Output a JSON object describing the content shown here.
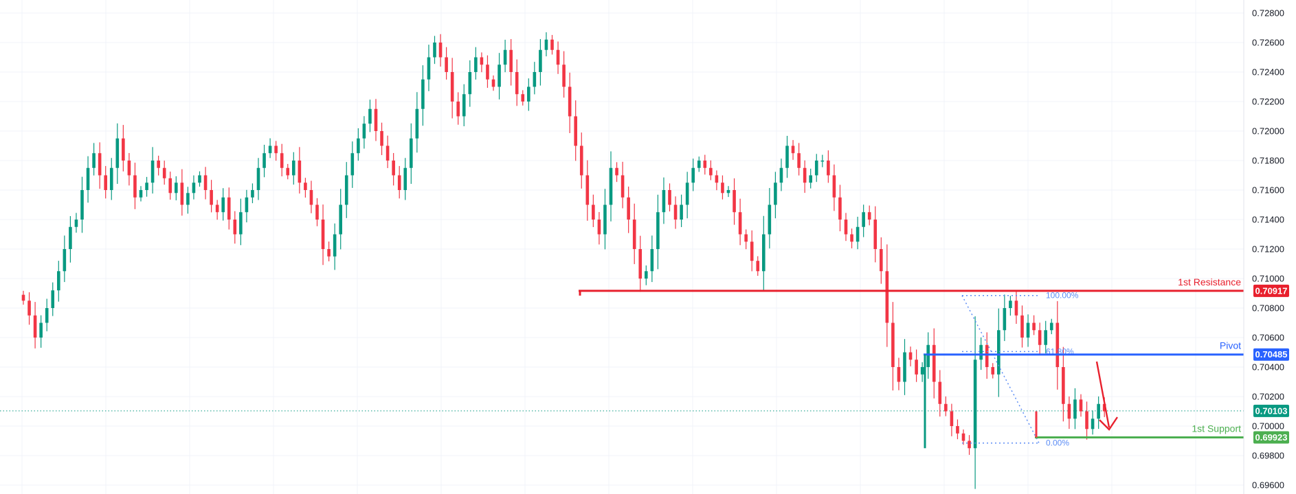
{
  "colors": {
    "background": "#ffffff",
    "grid": "#f0f3fa",
    "up_candle": "#089981",
    "down_candle": "#f23645",
    "resistance": "#e8202d",
    "pivot": "#2962ff",
    "support": "#4caf50",
    "current_price": "#089981",
    "fib": "#5b8cf5",
    "arrow": "#e8202d"
  },
  "chart_data": {
    "type": "candlestick",
    "grid": true,
    "ylim": [
      0.696,
      0.728
    ],
    "y_ticks": [
      "0.72800",
      "0.72600",
      "0.72400",
      "0.72200",
      "0.72000",
      "0.71800",
      "0.71600",
      "0.71400",
      "0.71200",
      "0.71000",
      "0.70800",
      "0.70600",
      "0.70400",
      "0.70200",
      "0.70000",
      "0.69800",
      "0.69600"
    ],
    "closes": [
      0.7085,
      0.7075,
      0.706,
      0.707,
      0.708,
      0.7092,
      0.7105,
      0.712,
      0.7135,
      0.714,
      0.716,
      0.7175,
      0.7185,
      0.717,
      0.716,
      0.7175,
      0.7195,
      0.718,
      0.717,
      0.7155,
      0.716,
      0.7165,
      0.718,
      0.7175,
      0.7168,
      0.7158,
      0.7165,
      0.715,
      0.7158,
      0.7165,
      0.717,
      0.716,
      0.715,
      0.7145,
      0.7155,
      0.714,
      0.713,
      0.7145,
      0.7155,
      0.716,
      0.7175,
      0.7185,
      0.719,
      0.7185,
      0.7175,
      0.717,
      0.718,
      0.7165,
      0.716,
      0.715,
      0.714,
      0.712,
      0.7115,
      0.713,
      0.715,
      0.717,
      0.7185,
      0.7195,
      0.7205,
      0.7215,
      0.72,
      0.719,
      0.718,
      0.717,
      0.716,
      0.7175,
      0.7195,
      0.7215,
      0.7235,
      0.725,
      0.726,
      0.725,
      0.724,
      0.722,
      0.721,
      0.7225,
      0.724,
      0.725,
      0.7245,
      0.7235,
      0.723,
      0.7245,
      0.7255,
      0.724,
      0.7225,
      0.722,
      0.723,
      0.724,
      0.7255,
      0.7262,
      0.7255,
      0.7245,
      0.723,
      0.721,
      0.719,
      0.717,
      0.715,
      0.714,
      0.713,
      0.715,
      0.7175,
      0.717,
      0.7155,
      0.714,
      0.712,
      0.71,
      0.7105,
      0.712,
      0.7145,
      0.716,
      0.715,
      0.714,
      0.715,
      0.7165,
      0.7175,
      0.718,
      0.7175,
      0.717,
      0.7165,
      0.7158,
      0.716,
      0.7145,
      0.713,
      0.7125,
      0.7112,
      0.7105,
      0.713,
      0.715,
      0.7165,
      0.7175,
      0.719,
      0.7185,
      0.7175,
      0.7165,
      0.717,
      0.718,
      0.718,
      0.717,
      0.7155,
      0.714,
      0.713,
      0.7125,
      0.7135,
      0.7145,
      0.714,
      0.712,
      0.7105,
      0.707,
      0.704,
      0.703,
      0.705,
      0.7045,
      0.7035,
      0.704,
      0.7055,
      0.703,
      0.7015,
      0.701,
      0.7,
      0.6995,
      0.699,
      0.6985,
      0.7045,
      0.7055,
      0.704,
      0.7035,
      0.7065,
      0.708,
      0.7085,
      0.7075,
      0.706,
      0.707,
      0.7065,
      0.7055,
      0.7065,
      0.707,
      0.704,
      0.7015,
      0.7005,
      0.7018,
      0.701,
      0.6998,
      0.7005,
      0.7015,
      0.701
    ],
    "levels": [
      {
        "label": "1st Resistance",
        "value": 0.70917,
        "tag": "0.70917"
      },
      {
        "label": "Pivot",
        "value": 0.70485,
        "tag": "0.70485"
      },
      {
        "label": "1st Support",
        "value": 0.69923,
        "tag": "0.69923"
      }
    ],
    "current_price": {
      "value": 0.70103,
      "tag": "0.70103"
    },
    "fibonacci": [
      {
        "label": "100.00%",
        "value": 0.70885
      },
      {
        "label": "61.80%",
        "value": 0.70505
      },
      {
        "label": "0.00%",
        "value": 0.69885
      }
    ]
  }
}
